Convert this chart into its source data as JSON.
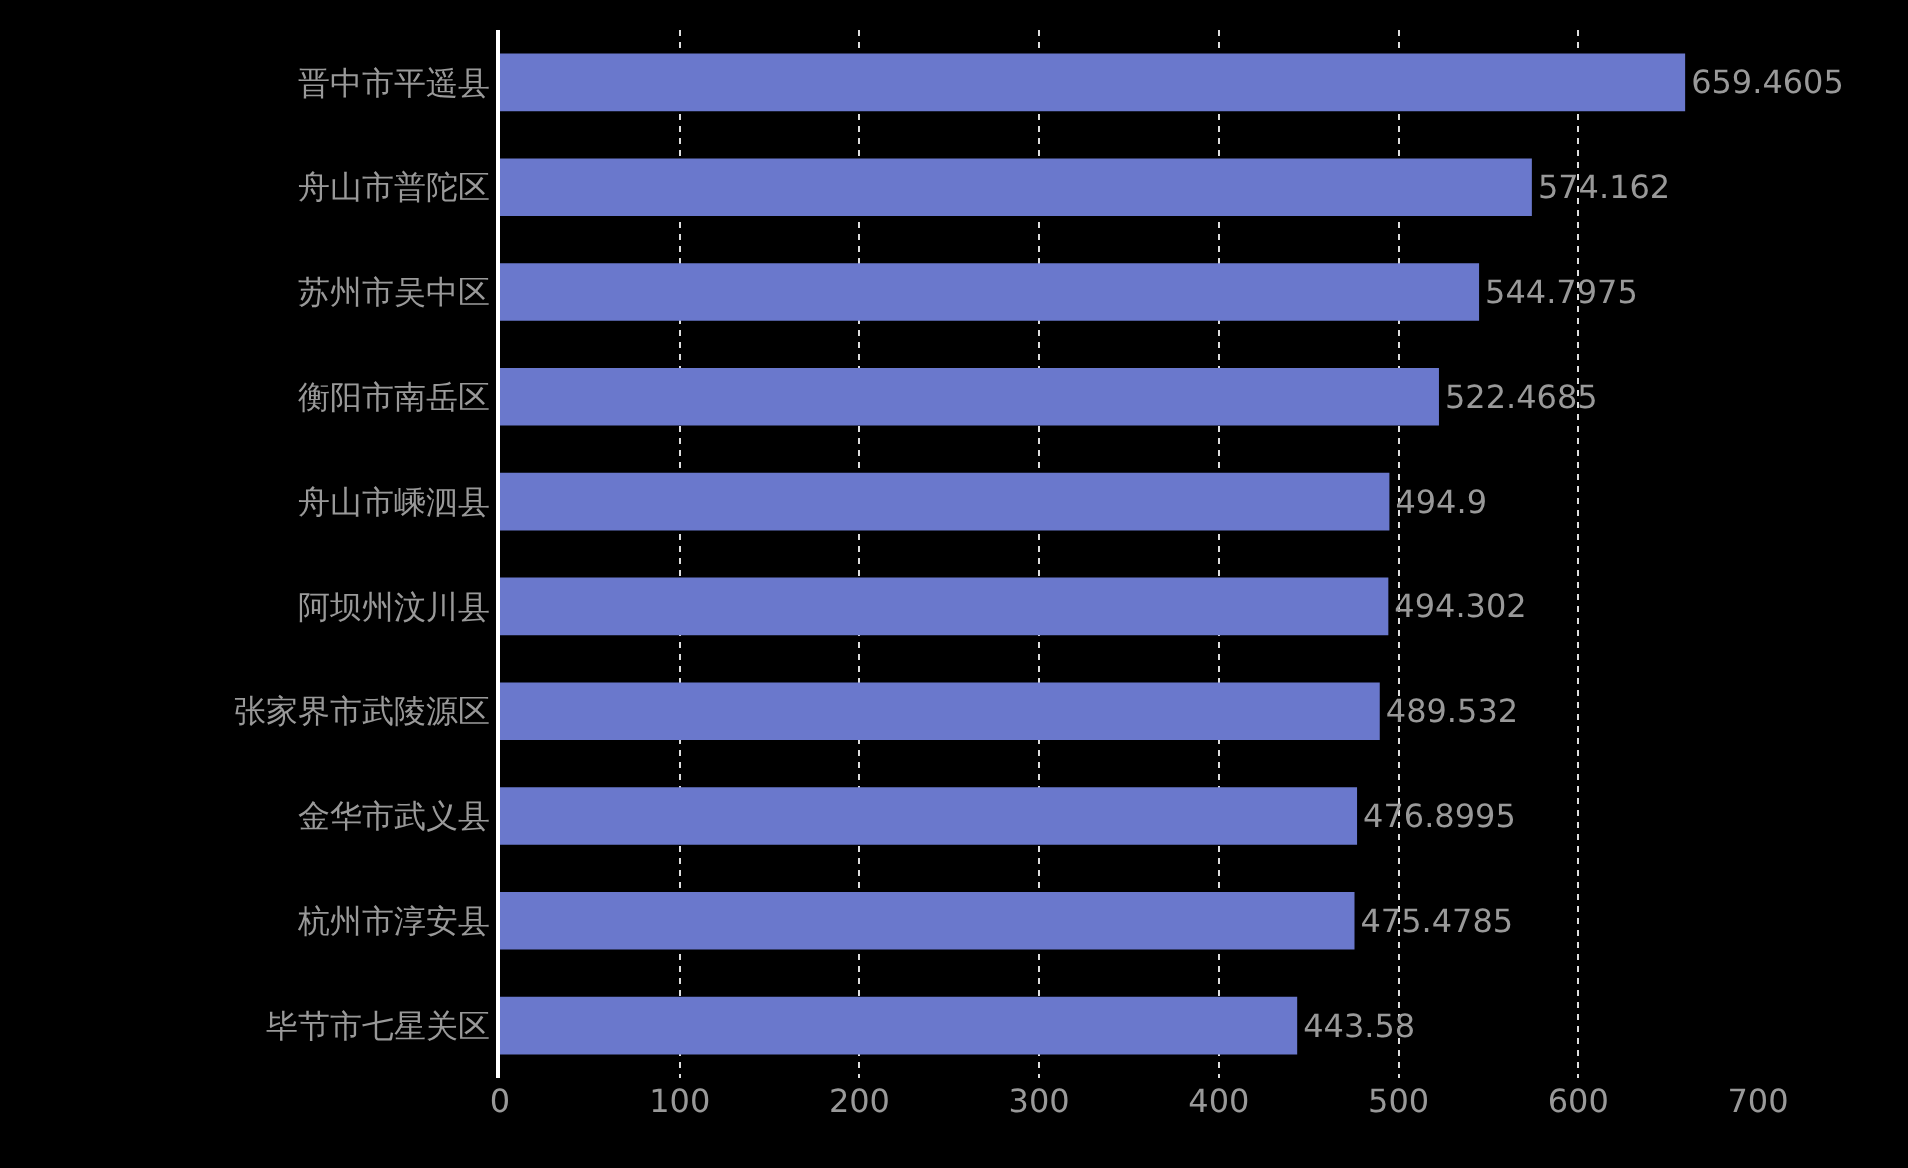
{
  "chart_data": {
    "type": "bar",
    "orientation": "horizontal",
    "categories": [
      "晋中市平遥县",
      "舟山市普陀区",
      "苏州市吴中区",
      "衡阳市南岳区",
      "舟山市嵊泗县",
      "阿坝州汶川县",
      "张家界市武陵源区",
      "金华市武义县",
      "杭州市淳安县",
      "毕节市七星关区"
    ],
    "values": [
      659.4605,
      574.162,
      544.7975,
      522.4685,
      494.9,
      494.302,
      489.532,
      476.8995,
      475.4785,
      443.58
    ],
    "color": "#6a78cc",
    "xlim": [
      0,
      700
    ],
    "xticks": [
      0,
      100,
      200,
      300,
      400,
      500,
      600,
      700
    ],
    "grid": "x",
    "data_labels": true
  }
}
